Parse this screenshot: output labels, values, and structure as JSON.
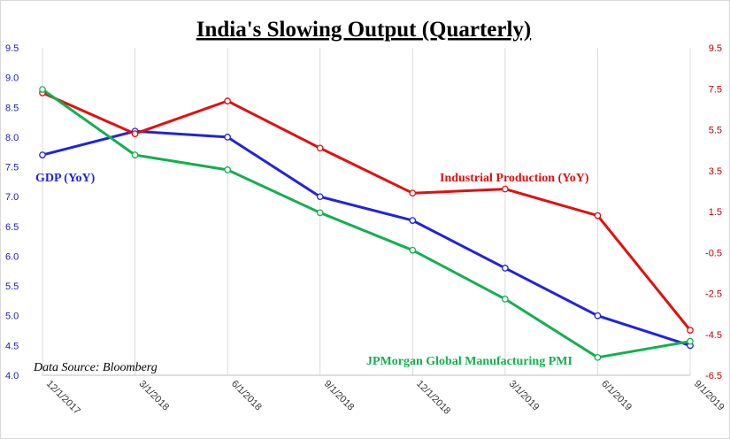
{
  "chart_data": {
    "type": "line",
    "title": "India's Slowing Output (Quarterly)",
    "x": [
      "12/1/2017",
      "3/1/2018",
      "6/1/2018",
      "9/1/2018",
      "12/1/2018",
      "3/1/2019",
      "6/1/2019",
      "9/1/2019"
    ],
    "y_left": {
      "range": [
        4.0,
        9.5
      ],
      "ticks": [
        "4.0",
        "4.5",
        "5.0",
        "5.5",
        "6.0",
        "6.5",
        "7.0",
        "7.5",
        "8.0",
        "8.5",
        "9.0",
        "9.5"
      ]
    },
    "y_right": {
      "range": [
        -6.5,
        9.5
      ],
      "ticks": [
        "-6.5",
        "-4.5",
        "-2.5",
        "-0.5",
        "1.5",
        "3.5",
        "5.5",
        "7.5",
        "9.5"
      ]
    },
    "grid": "vertical",
    "series": [
      {
        "name": "GDP (YoY)",
        "axis": "left",
        "color": "#2222dd",
        "values": [
          7.7,
          8.1,
          8.0,
          7.0,
          6.6,
          5.8,
          5.0,
          4.5
        ]
      },
      {
        "name": "Industrial Production (YoY)",
        "axis": "right",
        "color": "#e01010",
        "values": [
          7.3,
          5.3,
          6.9,
          4.6,
          2.4,
          2.6,
          1.3,
          -4.3
        ]
      },
      {
        "name": "JPMorgan Global Manufacturing PMI",
        "axis": "left",
        "color": "#12b050",
        "values": [
          8.8,
          7.7,
          7.45,
          6.73,
          6.1,
          5.28,
          4.3,
          4.57
        ]
      }
    ],
    "annotation": "Data Source: Bloomberg"
  }
}
